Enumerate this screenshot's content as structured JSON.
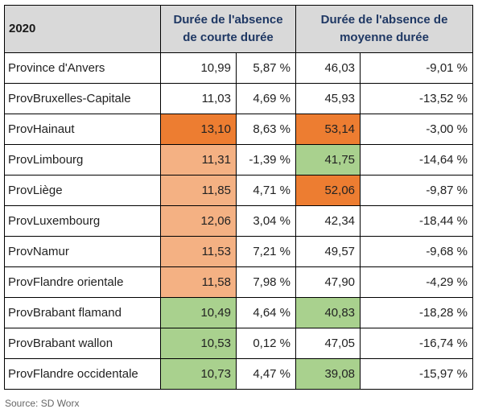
{
  "header": {
    "year": "2020",
    "col_short": "Durée de l'absence de courte durée",
    "col_medium": "Durée de l'absence de moyenne durée"
  },
  "colors": {
    "dark_orange": "#ed7d31",
    "light_orange": "#f4b183",
    "green": "#a9d18e",
    "none": ""
  },
  "rows": [
    {
      "name": "Province d'Anvers",
      "short": "10,99",
      "short_pct": "5,87 %",
      "medium": "46,03",
      "medium_pct": "-9,01 %",
      "short_color": "none",
      "medium_color": "none"
    },
    {
      "name": "ProvBruxelles-Capitale",
      "short": "11,03",
      "short_pct": "4,69 %",
      "medium": "45,93",
      "medium_pct": "-13,52 %",
      "short_color": "none",
      "medium_color": "none"
    },
    {
      "name": "ProvHainaut",
      "short": "13,10",
      "short_pct": "8,63 %",
      "medium": "53,14",
      "medium_pct": "-3,00 %",
      "short_color": "dark_orange",
      "medium_color": "dark_orange"
    },
    {
      "name": "ProvLimbourg",
      "short": "11,31",
      "short_pct": "-1,39 %",
      "medium": "41,75",
      "medium_pct": "-14,64 %",
      "short_color": "light_orange",
      "medium_color": "green"
    },
    {
      "name": "ProvLiège",
      "short": "11,85",
      "short_pct": "4,71 %",
      "medium": "52,06",
      "medium_pct": "-9,87 %",
      "short_color": "light_orange",
      "medium_color": "dark_orange"
    },
    {
      "name": "ProvLuxembourg",
      "short": "12,06",
      "short_pct": "3,04 %",
      "medium": "42,34",
      "medium_pct": "-18,44 %",
      "short_color": "light_orange",
      "medium_color": "none"
    },
    {
      "name": "ProvNamur",
      "short": "11,53",
      "short_pct": "7,21 %",
      "medium": "49,57",
      "medium_pct": "-9,68 %",
      "short_color": "light_orange",
      "medium_color": "none"
    },
    {
      "name": "ProvFlandre orientale",
      "short": "11,58",
      "short_pct": "7,98 %",
      "medium": "47,90",
      "medium_pct": "-4,29 %",
      "short_color": "light_orange",
      "medium_color": "none"
    },
    {
      "name": "ProvBrabant flamand",
      "short": "10,49",
      "short_pct": "4,64 %",
      "medium": "40,83",
      "medium_pct": "-18,28 %",
      "short_color": "green",
      "medium_color": "green"
    },
    {
      "name": "ProvBrabant wallon",
      "short": "10,53",
      "short_pct": "0,12 %",
      "medium": "47,05",
      "medium_pct": "-16,74 %",
      "short_color": "green",
      "medium_color": "none"
    },
    {
      "name": "ProvFlandre occidentale",
      "short": "10,73",
      "short_pct": "4,47 %",
      "medium": "39,08",
      "medium_pct": "-15,97 %",
      "short_color": "green",
      "medium_color": "green"
    }
  ],
  "source": "Source: SD Worx"
}
